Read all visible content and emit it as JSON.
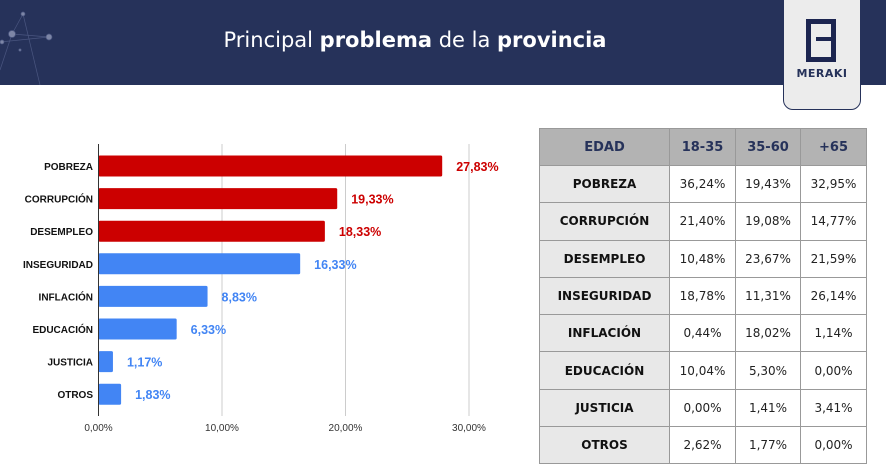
{
  "header": {
    "title_parts": [
      "Principal ",
      "problema",
      " de la ",
      "provincia"
    ],
    "logo_text": "MERAKI"
  },
  "colors": {
    "header_bg": "#26325a",
    "highlight": "#cc0000",
    "normal": "#4285f4"
  },
  "chart_data": {
    "type": "bar",
    "orientation": "horizontal",
    "categories": [
      "POBREZA",
      "CORRUPCIÓN",
      "DESEMPLEO",
      "INSEGURIDAD",
      "INFLACIÓN",
      "EDUCACIÓN",
      "JUSTICIA",
      "OTROS"
    ],
    "values": [
      27.83,
      19.33,
      18.33,
      16.33,
      8.83,
      6.33,
      1.17,
      1.83
    ],
    "data_labels": [
      "27,83%",
      "19,33%",
      "18,33%",
      "16,33%",
      "8,83%",
      "6,33%",
      "1,17%",
      "1,83%"
    ],
    "highlighted": [
      true,
      true,
      true,
      false,
      false,
      false,
      false,
      false
    ],
    "xlim": [
      0,
      30
    ],
    "xticks": [
      0,
      10,
      20,
      30
    ],
    "xtick_labels": [
      "0,00%",
      "10,00%",
      "20,00%",
      "30,00%"
    ],
    "grid": true
  },
  "table": {
    "headers": [
      "EDAD",
      "18-35",
      "35-60",
      "+65"
    ],
    "rows": [
      [
        "POBREZA",
        "36,24%",
        "19,43%",
        "32,95%"
      ],
      [
        "CORRUPCIÓN",
        "21,40%",
        "19,08%",
        "14,77%"
      ],
      [
        "DESEMPLEO",
        "10,48%",
        "23,67%",
        "21,59%"
      ],
      [
        "INSEGURIDAD",
        "18,78%",
        "11,31%",
        "26,14%"
      ],
      [
        "INFLACIÓN",
        "0,44%",
        "18,02%",
        "1,14%"
      ],
      [
        "EDUCACIÓN",
        "10,04%",
        "5,30%",
        "0,00%"
      ],
      [
        "JUSTICIA",
        "0,00%",
        "1,41%",
        "3,41%"
      ],
      [
        "OTROS",
        "2,62%",
        "1,77%",
        "0,00%"
      ]
    ]
  }
}
